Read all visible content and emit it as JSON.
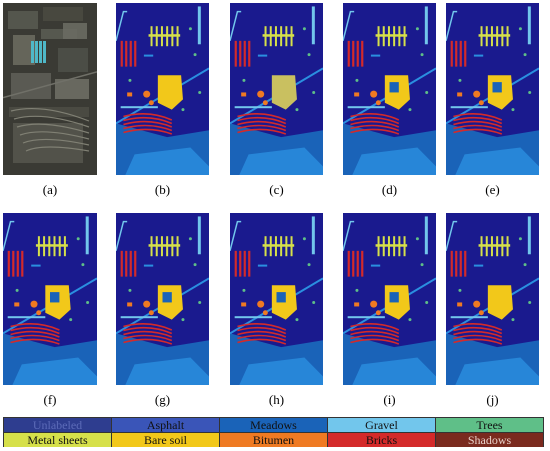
{
  "panels": [
    {
      "id": "a",
      "label": "(a)",
      "kind": "photo"
    },
    {
      "id": "b",
      "label": "(b)",
      "kind": "map",
      "variant": 0
    },
    {
      "id": "c",
      "label": "(c)",
      "kind": "map",
      "variant": 1
    },
    {
      "id": "d",
      "label": "(d)",
      "kind": "map",
      "variant": 2
    },
    {
      "id": "e",
      "label": "(e)",
      "kind": "map",
      "variant": 2
    },
    {
      "id": "f",
      "label": "(f)",
      "kind": "map",
      "variant": 2
    },
    {
      "id": "g",
      "label": "(g)",
      "kind": "map",
      "variant": 2
    },
    {
      "id": "h",
      "label": "(h)",
      "kind": "map",
      "variant": 2
    },
    {
      "id": "i",
      "label": "(i)",
      "kind": "map",
      "variant": 2
    },
    {
      "id": "j",
      "label": "(j)",
      "kind": "map",
      "variant": 0
    }
  ],
  "legend": [
    {
      "label": "Unlabeled",
      "color": "#2e3d8f",
      "text_color": "#5c6bb8"
    },
    {
      "label": "Asphalt",
      "color": "#3a55b8",
      "text_color": "#111111"
    },
    {
      "label": "Meadows",
      "color": "#1a63b8",
      "text_color": "#111111"
    },
    {
      "label": "Gravel",
      "color": "#72c6ec",
      "text_color": "#111111"
    },
    {
      "label": "Trees",
      "color": "#5fbf88",
      "text_color": "#111111"
    },
    {
      "label": "Metal sheets",
      "color": "#d6e04a",
      "text_color": "#111111"
    },
    {
      "label": "Bare soil",
      "color": "#f2c81a",
      "text_color": "#111111"
    },
    {
      "label": "Bitumen",
      "color": "#ef7a22",
      "text_color": "#111111"
    },
    {
      "label": "Bricks",
      "color": "#d42a2a",
      "text_color": "#111111"
    },
    {
      "label": "Shadows",
      "color": "#7a2a1e",
      "text_color": "#e8d0c8"
    }
  ],
  "colors": {
    "background": "#1a1a8e",
    "meadows": "#1a63b8",
    "meadows_light": "#2a8fe0",
    "gravel": "#72c6ec",
    "metal": "#d6e04a",
    "bare_soil": "#f2c81a",
    "bitumen": "#ef7a22",
    "bricks": "#d42a2a",
    "trees": "#5fbf88"
  }
}
